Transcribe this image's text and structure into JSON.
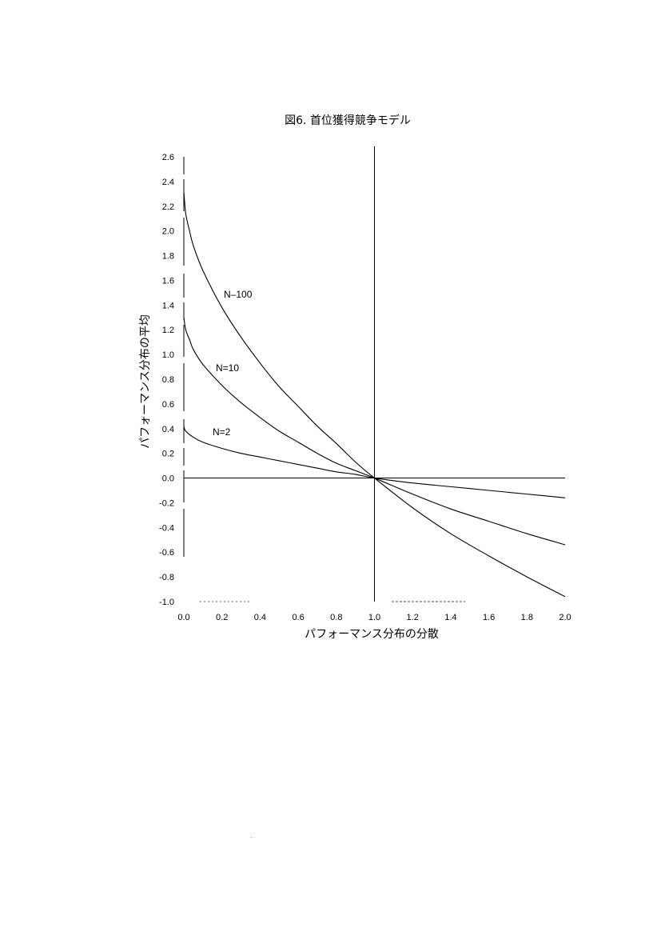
{
  "chart_data": {
    "type": "line",
    "title": "図6. 首位獲得競争モデル",
    "xlabel": "パフォーマンス分布の分散",
    "ylabel": "パフォーマンス分布の平均",
    "xlim": [
      0.0,
      2.0
    ],
    "ylim": [
      -1.0,
      2.6
    ],
    "xticks": [
      "0.0",
      "0.2",
      "0.4",
      "0.6",
      "0.8",
      "1.0",
      "1.2",
      "1.4",
      "1.6",
      "1.8",
      "2.0"
    ],
    "yticks": [
      "2.6",
      "2.4",
      "2.2",
      "2.0",
      "1.8",
      "1.6",
      "1.4",
      "1.2",
      "1.0",
      "0.8",
      "0.6",
      "0.4",
      "0.2",
      "0.0",
      "-0.2",
      "-0.4",
      "-0.6",
      "-0.8",
      "-1.0"
    ],
    "grid": false,
    "series": [
      {
        "name": "N=2",
        "x": [
          0.0,
          0.01,
          0.05,
          0.1,
          0.2,
          0.3,
          0.4,
          0.5,
          0.6,
          0.7,
          0.8,
          0.9,
          1.0,
          1.2,
          1.4,
          1.6,
          1.8,
          2.0
        ],
        "y": [
          0.42,
          0.38,
          0.33,
          0.29,
          0.24,
          0.2,
          0.17,
          0.14,
          0.11,
          0.08,
          0.05,
          0.03,
          0.0,
          -0.04,
          -0.07,
          -0.1,
          -0.13,
          -0.16
        ]
      },
      {
        "name": "N=10",
        "x": [
          0.0,
          0.01,
          0.03,
          0.05,
          0.1,
          0.2,
          0.3,
          0.4,
          0.5,
          0.6,
          0.7,
          0.8,
          0.9,
          1.0,
          1.2,
          1.4,
          1.6,
          1.8,
          2.0
        ],
        "y": [
          1.3,
          1.2,
          1.12,
          1.04,
          0.92,
          0.75,
          0.61,
          0.49,
          0.38,
          0.29,
          0.2,
          0.12,
          0.06,
          0.0,
          -0.13,
          -0.25,
          -0.35,
          -0.45,
          -0.54
        ]
      },
      {
        "name": "N=100",
        "x": [
          0.0,
          0.01,
          0.03,
          0.05,
          0.1,
          0.2,
          0.3,
          0.4,
          0.5,
          0.6,
          0.7,
          0.8,
          0.9,
          1.0,
          1.2,
          1.4,
          1.6,
          1.8,
          2.0
        ],
        "y": [
          2.32,
          2.14,
          2.0,
          1.88,
          1.68,
          1.38,
          1.14,
          0.93,
          0.74,
          0.58,
          0.42,
          0.28,
          0.13,
          0.0,
          -0.24,
          -0.45,
          -0.63,
          -0.8,
          -0.96
        ]
      }
    ],
    "labels": {
      "n2": "N=2",
      "n10": "N=10",
      "n100": "N–100"
    }
  }
}
